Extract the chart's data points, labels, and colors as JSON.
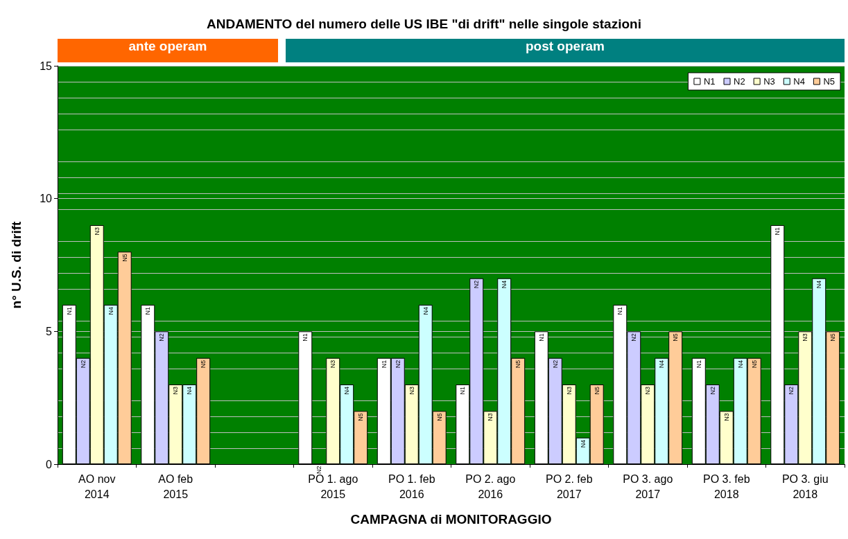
{
  "chart_data": {
    "type": "bar",
    "title": "ANDAMENTO del numero delle US IBE \"di drift\" nelle singole stazioni",
    "xlabel": "CAMPAGNA di MONITORAGGIO",
    "ylabel": "n° U.S. di drift",
    "categories": [
      "AO nov\n2014",
      "AO feb\n2015",
      null,
      "PO 1. ago\n2015",
      "PO 1. feb\n2016",
      "PO 2. ago\n2016",
      "PO 2. feb\n2017",
      "PO 3. ago\n2017",
      "PO 3. feb\n2018",
      "PO 3. giu\n2018"
    ],
    "series": [
      {
        "name": "N1",
        "color": "#ffffff",
        "values": [
          6,
          6,
          null,
          5,
          4,
          3,
          5,
          6,
          4,
          9
        ]
      },
      {
        "name": "N2",
        "color": "#ccccff",
        "values": [
          4,
          5,
          null,
          0,
          4,
          7,
          4,
          5,
          3,
          3
        ]
      },
      {
        "name": "N3",
        "color": "#ffffcc",
        "values": [
          9,
          3,
          null,
          4,
          3,
          2,
          3,
          3,
          2,
          5
        ]
      },
      {
        "name": "N4",
        "color": "#ccffff",
        "values": [
          6,
          3,
          null,
          3,
          6,
          7,
          1,
          4,
          4,
          7
        ]
      },
      {
        "name": "N5",
        "color": "#ffcc99",
        "values": [
          8,
          4,
          null,
          2,
          2,
          4,
          3,
          5,
          4,
          5
        ]
      }
    ],
    "annotations": [
      "ante operam",
      "post operam"
    ],
    "ylim": [
      0,
      15
    ],
    "yticks": [
      0,
      5,
      10,
      15
    ],
    "grid": true,
    "legend": "top right"
  }
}
